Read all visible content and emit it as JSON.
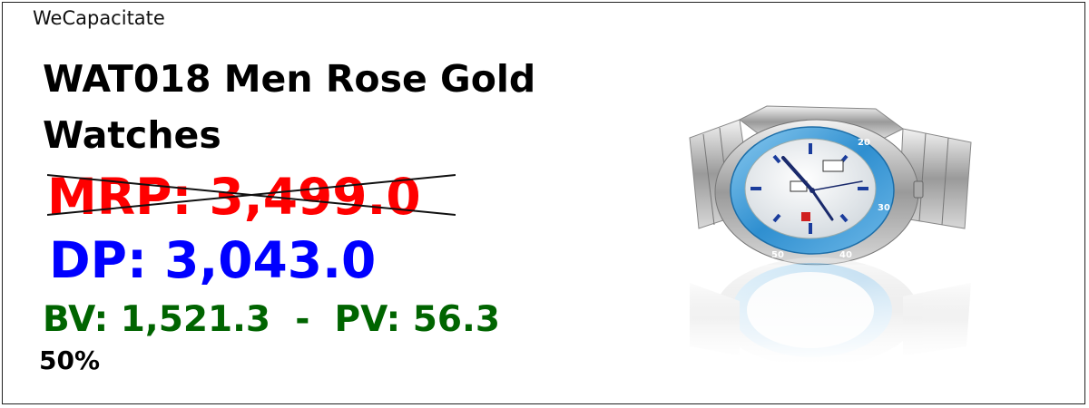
{
  "brand": "WeCapacitate",
  "product": {
    "title": "WAT018 Men Rose Gold Watches",
    "mrp_text": "MRP: 3,499.0",
    "dp_text": "DP: 3,043.0",
    "bv_pv_text": "BV: 1,521.3  -  PV: 56.3",
    "discount_text": "50%"
  },
  "watch_image": {
    "dial_numbers": [
      "20",
      "30",
      "50",
      "40"
    ]
  },
  "colors": {
    "mrp": "#ff0000",
    "dp": "#0000ff",
    "bv_pv": "#006400",
    "bezel": "#3a9ad6"
  }
}
